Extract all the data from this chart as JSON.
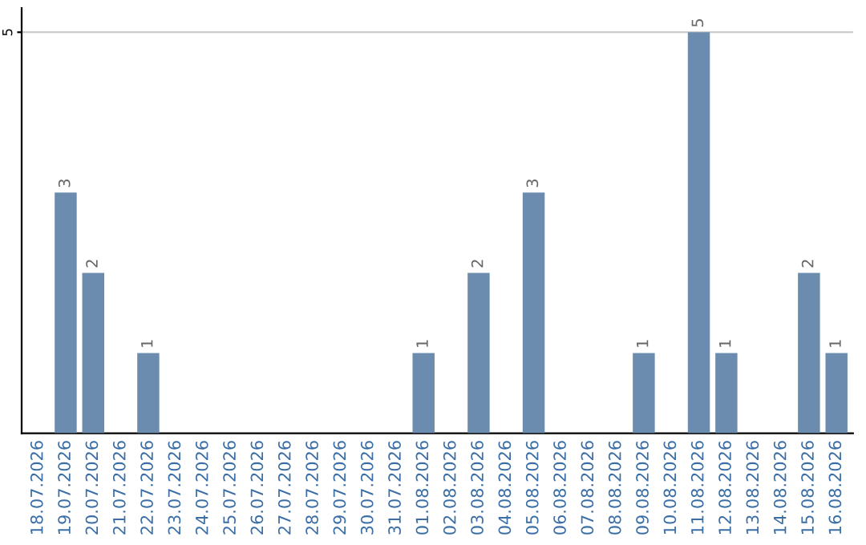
{
  "chart_data": {
    "type": "bar",
    "categories": [
      "18.07.2026",
      "19.07.2026",
      "20.07.2026",
      "21.07.2026",
      "22.07.2026",
      "23.07.2026",
      "24.07.2026",
      "25.07.2026",
      "26.07.2026",
      "27.07.2026",
      "28.07.2026",
      "29.07.2026",
      "30.07.2026",
      "31.07.2026",
      "01.08.2026",
      "02.08.2026",
      "03.08.2026",
      "04.08.2026",
      "05.08.2026",
      "06.08.2026",
      "07.08.2026",
      "08.08.2026",
      "09.08.2026",
      "10.08.2026",
      "11.08.2026",
      "12.08.2026",
      "13.08.2026",
      "14.08.2026",
      "15.08.2026",
      "16.08.2026"
    ],
    "values": [
      0,
      3,
      2,
      0,
      1,
      0,
      0,
      0,
      0,
      0,
      0,
      0,
      0,
      0,
      1,
      0,
      2,
      0,
      3,
      0,
      0,
      0,
      1,
      0,
      5,
      1,
      0,
      0,
      2,
      1
    ],
    "value_labels": [
      null,
      "3",
      "2",
      null,
      "1",
      null,
      null,
      null,
      null,
      null,
      null,
      null,
      null,
      null,
      "1",
      null,
      "2",
      null,
      "3",
      null,
      null,
      null,
      "1",
      null,
      "5",
      "1",
      null,
      null,
      "2",
      "1"
    ],
    "color": "#6b8cae",
    "ylim": [
      0,
      5.3
    ],
    "yticks": [
      5
    ],
    "grid": "y",
    "legend": false
  }
}
